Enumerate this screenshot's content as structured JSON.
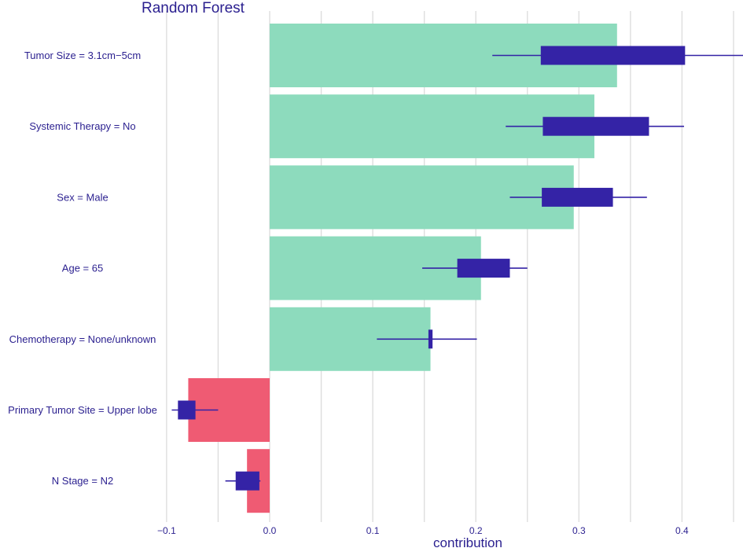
{
  "chart_data": {
    "type": "bar",
    "title": "Random Forest",
    "xlabel": "contribution",
    "ylabel": "",
    "xlim": [
      -0.1,
      0.46
    ],
    "x_ticks": [
      -0.1,
      0.0,
      0.1,
      0.2,
      0.3,
      0.4
    ],
    "x_tick_labels": [
      "−0.1",
      "0.0",
      "0.1",
      "0.2",
      "0.3",
      "0.4"
    ],
    "grid": true,
    "orientation": "horizontal",
    "categories": [
      "Tumor Size = 3.1cm−5cm",
      "Systemic Therapy = No",
      "Sex = Male",
      "Age = 65",
      "Chemotherapy = None/unknown",
      "Primary Tumor Site = Upper lobe",
      "N Stage = N2"
    ],
    "values": [
      0.337,
      0.315,
      0.295,
      0.205,
      0.156,
      -0.079,
      -0.022
    ],
    "boxplots": [
      {
        "whisker_low": 0.216,
        "q1": 0.263,
        "q3": 0.403,
        "whisker_high": 0.46
      },
      {
        "whisker_low": 0.229,
        "q1": 0.265,
        "q3": 0.368,
        "whisker_high": 0.402
      },
      {
        "whisker_low": 0.233,
        "q1": 0.264,
        "q3": 0.333,
        "whisker_high": 0.366
      },
      {
        "whisker_low": 0.148,
        "q1": 0.182,
        "q3": 0.233,
        "whisker_high": 0.25
      },
      {
        "whisker_low": 0.104,
        "q1": 0.154,
        "q3": 0.158,
        "whisker_high": 0.201
      },
      {
        "whisker_low": -0.095,
        "q1": -0.089,
        "q3": -0.072,
        "whisker_high": -0.05
      },
      {
        "whisker_low": -0.043,
        "q1": -0.033,
        "q3": -0.01,
        "whisker_high": -0.009
      }
    ],
    "colors": {
      "positive": "#8ddbbd",
      "negative": "#ef5b73",
      "box": "#3423a6",
      "text": "#2a1f8f",
      "grid": "#dedede"
    }
  }
}
